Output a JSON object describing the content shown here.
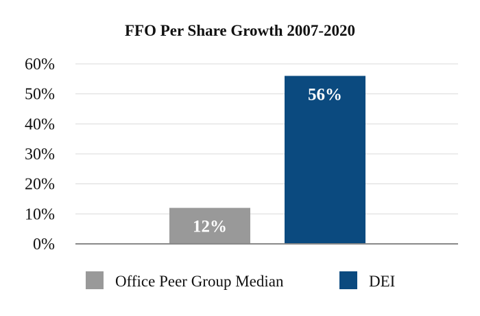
{
  "chart_data": {
    "type": "bar",
    "title": "FFO Per Share Growth 2007-2020",
    "xlabel": "",
    "ylabel": "",
    "categories": [
      "Office Peer Group Median",
      "DEI"
    ],
    "values": [
      12,
      56
    ],
    "data_labels": [
      "12%",
      "56%"
    ],
    "colors": [
      "#999999",
      "#0b4a7f"
    ],
    "ylim": [
      0,
      60
    ],
    "yticks": [
      0,
      10,
      20,
      30,
      40,
      50,
      60
    ],
    "ytick_labels": [
      "0%",
      "10%",
      "20%",
      "30%",
      "40%",
      "50%",
      "60%"
    ],
    "grid": true,
    "legend": {
      "position": "bottom",
      "entries": [
        "Office Peer Group Median",
        "DEI"
      ]
    }
  }
}
